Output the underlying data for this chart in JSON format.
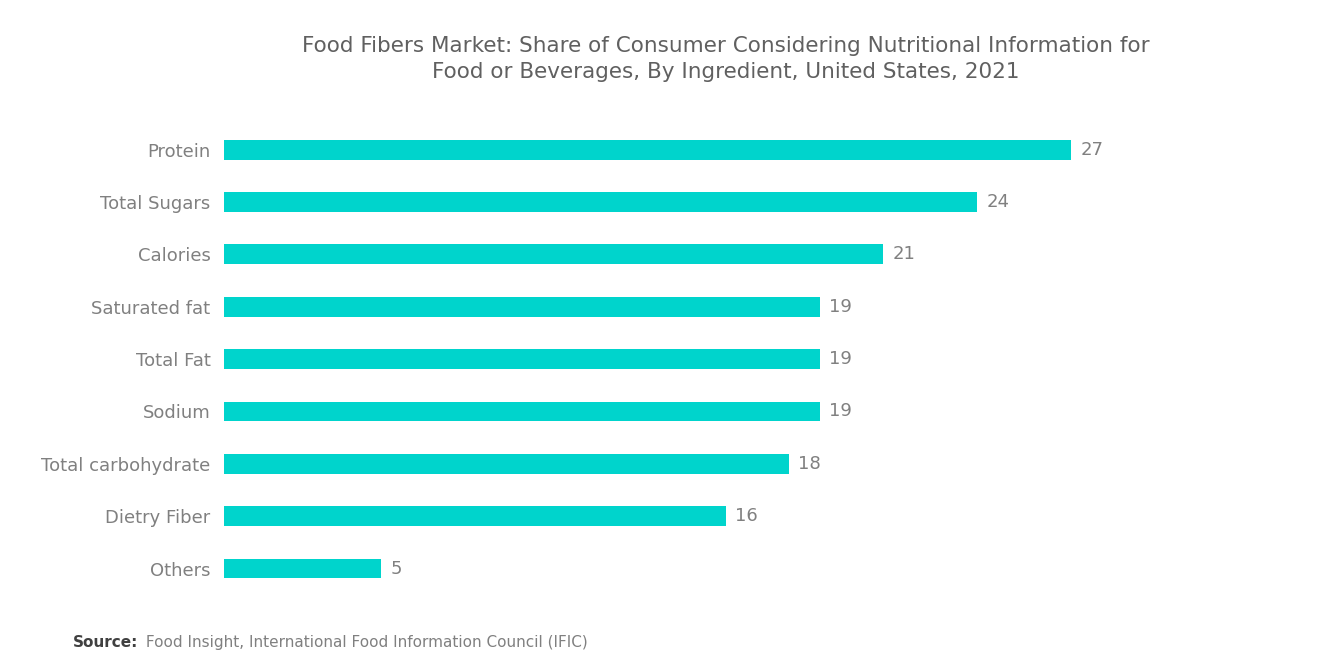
{
  "title": "Food Fibers Market: Share of Consumer Considering Nutritional Information for\nFood or Beverages, By Ingredient, United States, 2021",
  "categories": [
    "Protein",
    "Total Sugars",
    "Calories",
    "Saturated fat",
    "Total Fat",
    "Sodium",
    "Total carbohydrate",
    "Dietry Fiber",
    "Others"
  ],
  "values": [
    27,
    24,
    21,
    19,
    19,
    19,
    18,
    16,
    5
  ],
  "bar_color": "#00D4CC",
  "label_color": "#808080",
  "title_color": "#606060",
  "value_color": "#808080",
  "source_bold": "Source:",
  "source_text": " Food Insight, International Food Information Council (IFIC)",
  "background_color": "#ffffff",
  "xlim": [
    0,
    32
  ],
  "title_fontsize": 15.5,
  "label_fontsize": 13,
  "value_fontsize": 13,
  "source_fontsize": 11,
  "bar_height": 0.38
}
